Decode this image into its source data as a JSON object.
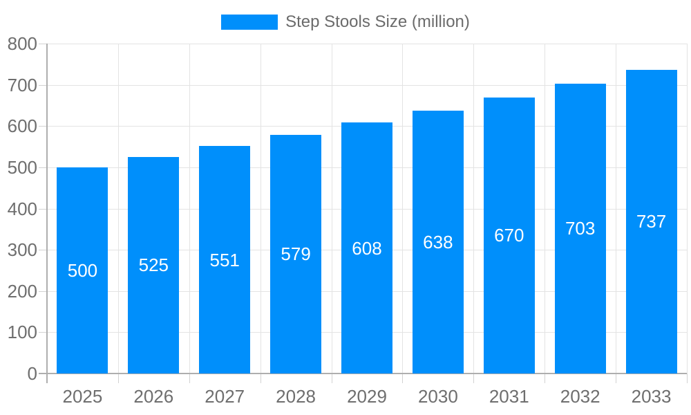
{
  "chart_data": {
    "type": "bar",
    "title": "Step Stools Size (million)",
    "categories": [
      "2025",
      "2026",
      "2027",
      "2028",
      "2029",
      "2030",
      "2031",
      "2032",
      "2033"
    ],
    "series": [
      {
        "name": "Step Stools Size (million)",
        "color": "#008FFB",
        "values": [
          500,
          525,
          551,
          579,
          608,
          638,
          670,
          703,
          737
        ]
      }
    ],
    "xlabel": "",
    "ylabel": "",
    "ylim": [
      0,
      800
    ],
    "yticks": [
      0,
      100,
      200,
      300,
      400,
      500,
      600,
      700,
      800
    ],
    "grid": true,
    "legend_position": "top",
    "value_labels": {
      "position": "center",
      "color": "#ffffff"
    }
  }
}
